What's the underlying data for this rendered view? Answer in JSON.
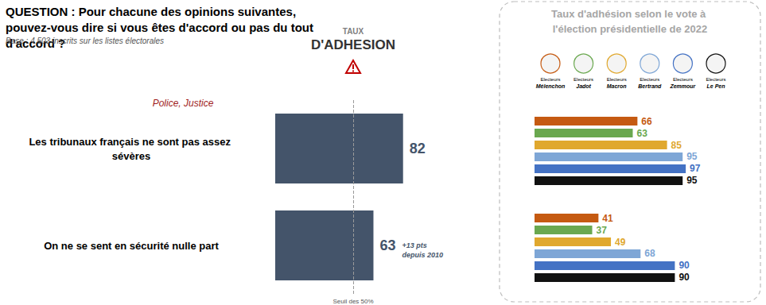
{
  "title": "QUESTION : Pour chacune des opinions suivantes, pouvez-vous dire si vous êtes d'accord ou pas du tout d'accord ?",
  "subtitle": "Base : 4 503 inscrits sur les listes électorales",
  "chart_data": [
    {
      "type": "bar",
      "orientation": "horizontal",
      "title": "TAUX D'ADHESION",
      "section": "Police, Justice",
      "categories": [
        "Les tribunaux français ne sont pas assez sévères",
        "On ne se sent en sécurité nulle part"
      ],
      "values": [
        82,
        63
      ],
      "color": "#44546a",
      "data_labels": true,
      "xlim": [
        0,
        100
      ],
      "tick_labels": false,
      "grid": false,
      "threshold": {
        "value": 50,
        "label": "Seuil des 50%"
      },
      "annotations": [
        {
          "category": "On ne se sent en sécurité nulle part",
          "text": "+13 pts depuis 2010"
        }
      ]
    },
    {
      "type": "bar",
      "orientation": "horizontal",
      "title": "Taux d'adhésion selon le vote à l'élection présidentielle de 2022",
      "categories": [
        "Les tribunaux français ne sont pas assez sévères",
        "On ne se sent en sécurité nulle part"
      ],
      "series": [
        {
          "name": "Electeurs Mélenchon",
          "color": "#c55a11",
          "values": [
            66,
            41
          ]
        },
        {
          "name": "Electeurs Jadot",
          "color": "#6aa84f",
          "values": [
            63,
            37
          ]
        },
        {
          "name": "Electeurs Macron",
          "color": "#e0a82e",
          "values": [
            85,
            49
          ]
        },
        {
          "name": "Electeurs Bertrand",
          "color": "#7ea6d6",
          "values": [
            95,
            68
          ]
        },
        {
          "name": "Electeurs Zemmour",
          "color": "#4472c4",
          "values": [
            97,
            90
          ]
        },
        {
          "name": "Electeurs Le Pen",
          "color": "#111111",
          "values": [
            95,
            90
          ]
        }
      ],
      "data_labels": true,
      "xlim": [
        0,
        100
      ],
      "tick_labels": false,
      "grid": false
    }
  ]
}
